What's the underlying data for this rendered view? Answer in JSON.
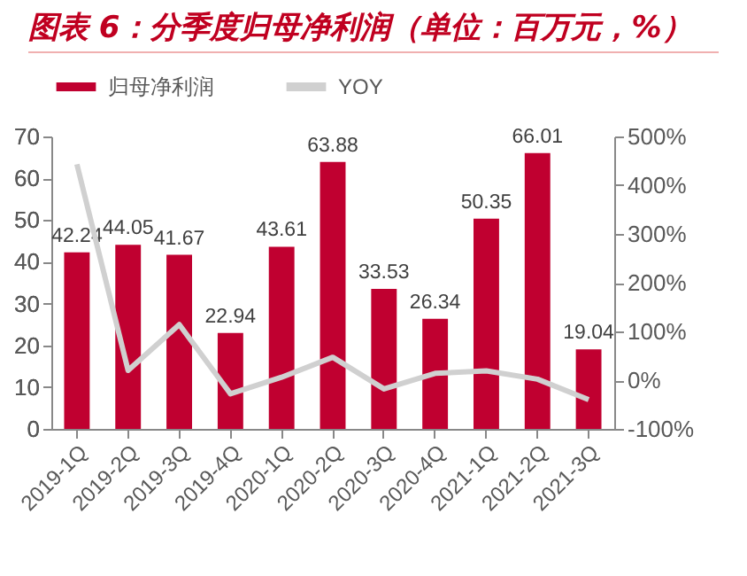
{
  "chart_data": {
    "type": "bar",
    "title": "图表 6：分季度归母净利润（单位：百万元，%）",
    "categories": [
      "2019-1Q",
      "2019-2Q",
      "2019-3Q",
      "2019-4Q",
      "2020-1Q",
      "2020-2Q",
      "2020-3Q",
      "2020-4Q",
      "2021-1Q",
      "2021-2Q",
      "2021-3Q"
    ],
    "series": [
      {
        "name": "归母净利润",
        "color": "#c00030",
        "values": [
          42.24,
          44.05,
          41.67,
          22.94,
          43.61,
          63.88,
          33.53,
          26.34,
          50.35,
          66.01,
          19.04
        ],
        "value_labels": [
          "42.24",
          "44.05",
          "41.67",
          "22.94",
          "43.61",
          "63.88",
          "33.53",
          "26.34",
          "50.35",
          "66.01",
          "19.04"
        ]
      },
      {
        "name": "YOY",
        "type": "line",
        "axis": "y2",
        "color": "#d0d0d0",
        "values": [
          443,
          20,
          114,
          -28,
          6,
          47,
          -18,
          14,
          19,
          2,
          -40
        ]
      }
    ],
    "ylim": [
      0,
      70
    ],
    "yticks": [
      0,
      10,
      20,
      30,
      40,
      50,
      60,
      70
    ],
    "y2lim": [
      -100,
      500
    ],
    "y2ticks": [
      {
        "value": -100,
        "label": "-100%"
      },
      {
        "value": 0,
        "label": "0%"
      },
      {
        "value": 100,
        "label": "100%"
      },
      {
        "value": 200,
        "label": "200%"
      },
      {
        "value": 300,
        "label": "300%"
      },
      {
        "value": 400,
        "label": "400%"
      },
      {
        "value": 500,
        "label": "500%"
      }
    ],
    "grid": false,
    "legend": "top"
  }
}
